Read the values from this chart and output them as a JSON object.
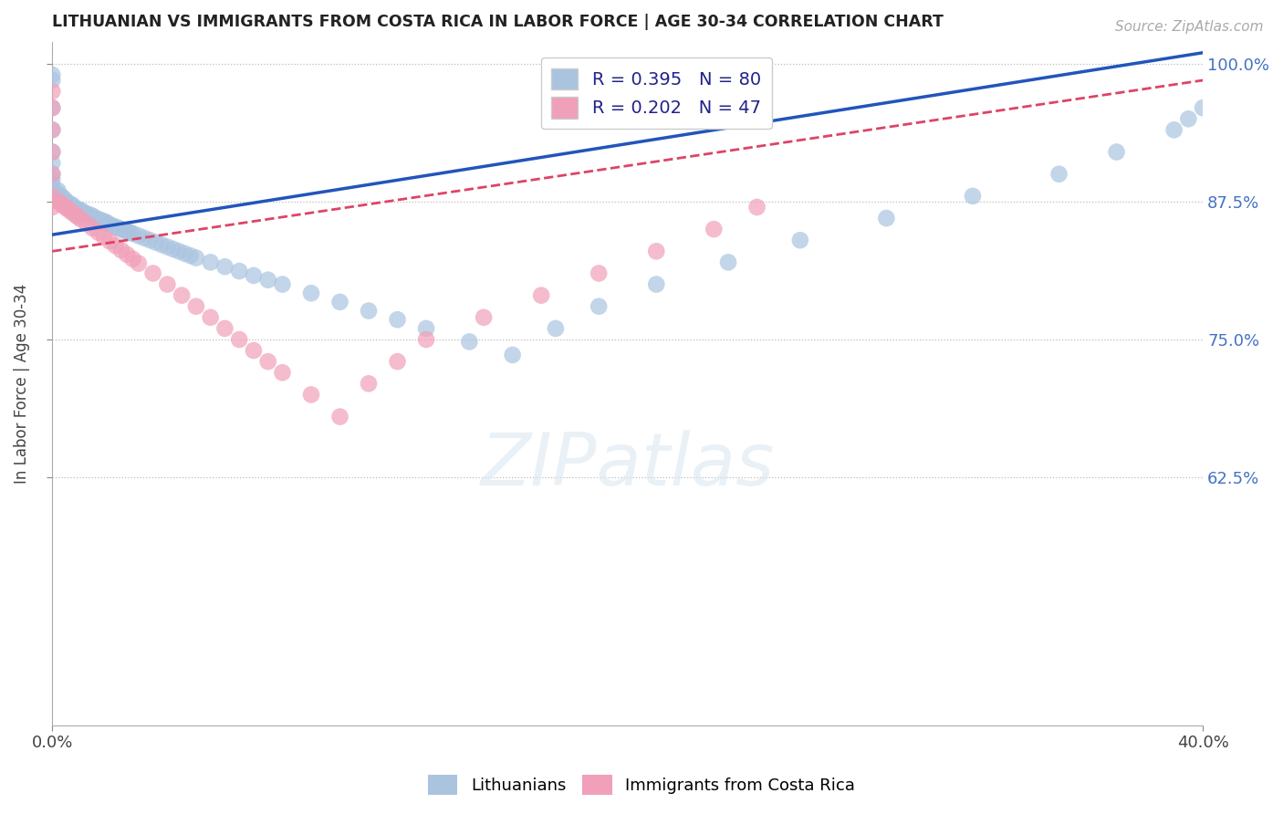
{
  "title": "LITHUANIAN VS IMMIGRANTS FROM COSTA RICA IN LABOR FORCE | AGE 30-34 CORRELATION CHART",
  "source": "Source: ZipAtlas.com",
  "ylabel": "In Labor Force | Age 30-34",
  "xlim": [
    0.0,
    0.4
  ],
  "ylim": [
    0.4,
    1.02
  ],
  "x_ticks": [
    0.0,
    0.4
  ],
  "x_tick_labels": [
    "0.0%",
    "40.0%"
  ],
  "y_ticks": [
    0.625,
    0.75,
    0.875,
    1.0
  ],
  "y_tick_labels": [
    "62.5%",
    "75.0%",
    "87.5%",
    "100.0%"
  ],
  "blue_R": 0.395,
  "blue_N": 80,
  "pink_R": 0.202,
  "pink_N": 47,
  "blue_color": "#aac4e0",
  "blue_line_color": "#2255bb",
  "pink_color": "#f0a0b8",
  "pink_line_color": "#dd4466",
  "blue_line_x0": 0.0,
  "blue_line_y0": 0.845,
  "blue_line_x1": 0.4,
  "blue_line_y1": 1.01,
  "pink_line_x0": 0.0,
  "pink_line_y0": 0.83,
  "pink_line_x1": 0.4,
  "pink_line_y1": 0.985,
  "blue_scatter_x": [
    0.0,
    0.0,
    0.0,
    0.0,
    0.0,
    0.0,
    0.0,
    0.0,
    0.0,
    0.0,
    0.002,
    0.002,
    0.003,
    0.003,
    0.004,
    0.004,
    0.004,
    0.005,
    0.005,
    0.006,
    0.007,
    0.007,
    0.008,
    0.009,
    0.01,
    0.01,
    0.011,
    0.012,
    0.013,
    0.014,
    0.015,
    0.016,
    0.017,
    0.018,
    0.019,
    0.02,
    0.021,
    0.022,
    0.023,
    0.024,
    0.025,
    0.026,
    0.027,
    0.028,
    0.03,
    0.032,
    0.034,
    0.036,
    0.038,
    0.04,
    0.042,
    0.044,
    0.046,
    0.048,
    0.05,
    0.055,
    0.06,
    0.065,
    0.07,
    0.075,
    0.08,
    0.09,
    0.1,
    0.11,
    0.12,
    0.13,
    0.145,
    0.16,
    0.175,
    0.19,
    0.21,
    0.235,
    0.26,
    0.29,
    0.32,
    0.35,
    0.37,
    0.39,
    0.395,
    0.4
  ],
  "blue_scatter_y": [
    0.99,
    0.985,
    0.96,
    0.94,
    0.92,
    0.91,
    0.9,
    0.895,
    0.89,
    0.885,
    0.885,
    0.882,
    0.88,
    0.878,
    0.878,
    0.876,
    0.875,
    0.875,
    0.874,
    0.873,
    0.872,
    0.87,
    0.869,
    0.868,
    0.867,
    0.866,
    0.865,
    0.864,
    0.863,
    0.862,
    0.86,
    0.859,
    0.858,
    0.857,
    0.856,
    0.854,
    0.853,
    0.852,
    0.851,
    0.85,
    0.849,
    0.848,
    0.847,
    0.846,
    0.844,
    0.842,
    0.84,
    0.838,
    0.836,
    0.834,
    0.832,
    0.83,
    0.828,
    0.826,
    0.824,
    0.82,
    0.816,
    0.812,
    0.808,
    0.804,
    0.8,
    0.792,
    0.784,
    0.776,
    0.768,
    0.76,
    0.748,
    0.736,
    0.76,
    0.78,
    0.8,
    0.82,
    0.84,
    0.86,
    0.88,
    0.9,
    0.92,
    0.94,
    0.95,
    0.96
  ],
  "pink_scatter_x": [
    0.0,
    0.0,
    0.0,
    0.0,
    0.0,
    0.0,
    0.0,
    0.002,
    0.003,
    0.004,
    0.005,
    0.006,
    0.007,
    0.008,
    0.009,
    0.01,
    0.012,
    0.014,
    0.016,
    0.018,
    0.02,
    0.022,
    0.024,
    0.026,
    0.028,
    0.03,
    0.035,
    0.04,
    0.045,
    0.05,
    0.055,
    0.06,
    0.065,
    0.07,
    0.075,
    0.08,
    0.09,
    0.1,
    0.11,
    0.12,
    0.13,
    0.15,
    0.17,
    0.19,
    0.21,
    0.23,
    0.245
  ],
  "pink_scatter_y": [
    0.975,
    0.96,
    0.94,
    0.92,
    0.9,
    0.88,
    0.87,
    0.875,
    0.873,
    0.871,
    0.869,
    0.867,
    0.865,
    0.863,
    0.861,
    0.859,
    0.855,
    0.851,
    0.847,
    0.843,
    0.839,
    0.835,
    0.831,
    0.827,
    0.823,
    0.819,
    0.81,
    0.8,
    0.79,
    0.78,
    0.77,
    0.76,
    0.75,
    0.74,
    0.73,
    0.72,
    0.7,
    0.68,
    0.71,
    0.73,
    0.75,
    0.77,
    0.79,
    0.81,
    0.83,
    0.85,
    0.87
  ]
}
